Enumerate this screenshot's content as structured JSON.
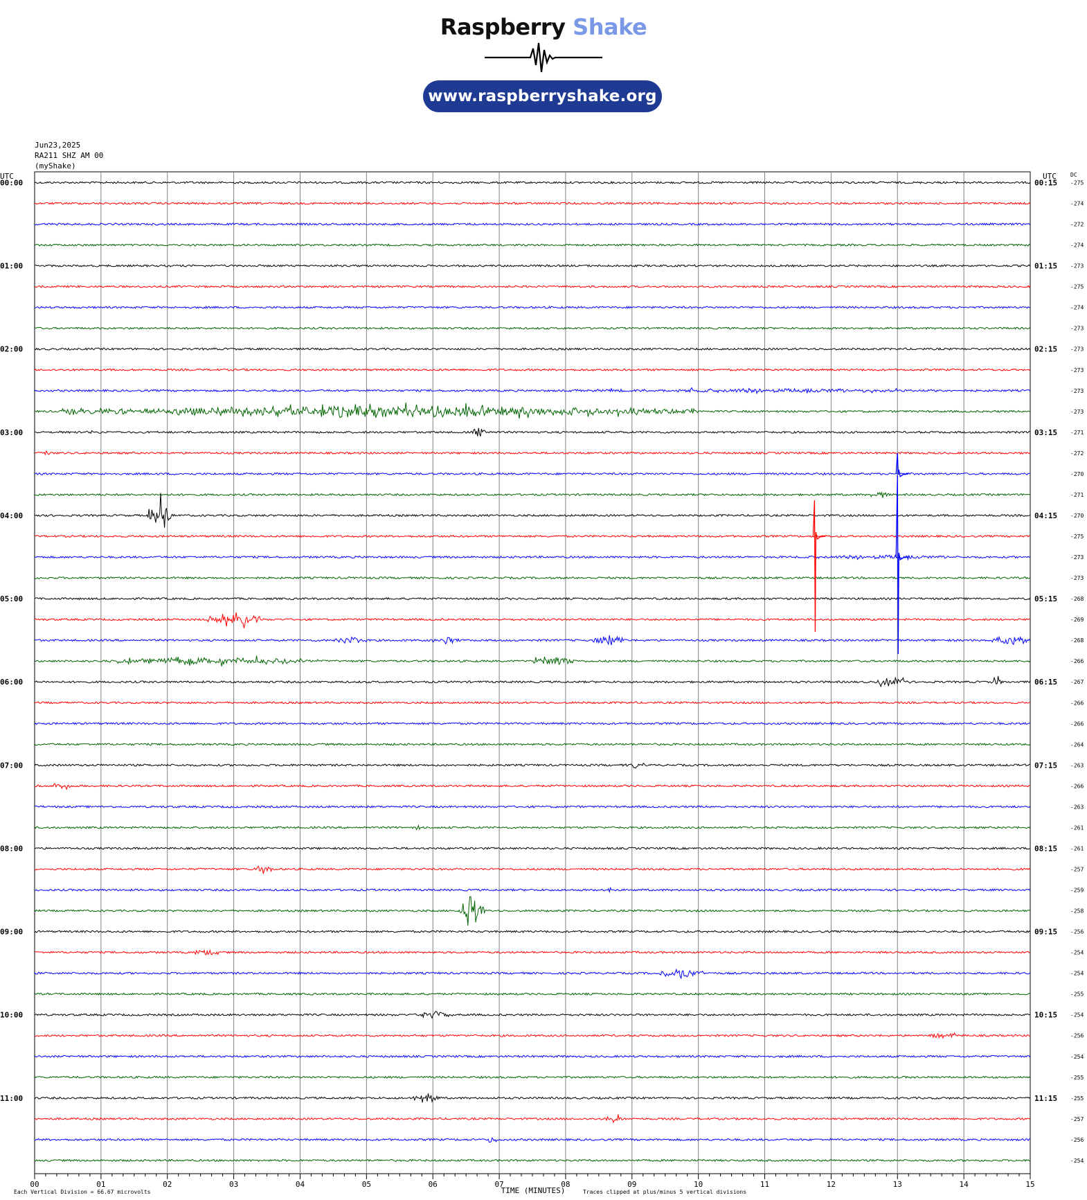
{
  "header": {
    "brand_part1": "Raspberry",
    "brand_part2": "Shake",
    "url": "www.raspberryshake.org"
  },
  "meta": {
    "date": "Jun23,2025",
    "station": "RA211 SHZ AM 00",
    "network": "(myShake)"
  },
  "colors": {
    "trace_cycle": [
      "#000000",
      "#ff0000",
      "#0000ff",
      "#006400"
    ],
    "grid": "#808080"
  },
  "chart_data": {
    "type": "line",
    "subtype": "helicorder",
    "xlabel": "TIME (MINUTES)",
    "xlim": [
      0,
      15
    ],
    "x_ticks": [
      "00",
      "01",
      "02",
      "03",
      "04",
      "05",
      "06",
      "07",
      "08",
      "09",
      "10",
      "11",
      "12",
      "13",
      "14",
      "15"
    ],
    "left_axis_title": "UTC",
    "right_axis_title": "UTC",
    "dc_title": "DC",
    "left_time_labels": [
      "00:00",
      "01:00",
      "02:00",
      "03:00",
      "04:00",
      "05:00",
      "06:00",
      "07:00",
      "08:00",
      "09:00",
      "10:00",
      "11:00"
    ],
    "right_time_labels": [
      "00:15",
      "01:15",
      "02:15",
      "03:15",
      "04:15",
      "05:15",
      "06:15",
      "07:15",
      "08:15",
      "09:15",
      "10:15",
      "11:15"
    ],
    "dc_offsets": [
      -275,
      -274,
      -272,
      -274,
      -273,
      -275,
      -274,
      -273,
      -273,
      -273,
      -273,
      -273,
      -271,
      -272,
      -270,
      -271,
      -270,
      -275,
      -273,
      -273,
      -268,
      -269,
      -268,
      -266,
      -267,
      -266,
      -266,
      -264,
      -263,
      -266,
      -263,
      -261,
      -261,
      -257,
      -259,
      -258,
      -256,
      -254,
      -254,
      -255,
      -254,
      -256,
      -254,
      -255,
      -255,
      -257,
      -256,
      -254
    ],
    "rows_per_hour": 4,
    "minutes_per_row": 15,
    "footer_left": "Each Vertical Division =   66.67 microvolts",
    "footer_right": "Traces clipped at plus/minus 5 vertical divisions",
    "events": [
      {
        "row": 10,
        "start": 8.0,
        "end": 13.8,
        "amp": 4
      },
      {
        "row": 11,
        "start": 0.4,
        "end": 10.0,
        "amp": 10
      },
      {
        "row": 12,
        "start": 0.3,
        "end": 1.5,
        "amp": 3
      },
      {
        "row": 12,
        "start": 6.6,
        "end": 6.8,
        "amp": 10
      },
      {
        "row": 13,
        "start": 0.15,
        "end": 0.25,
        "amp": 7
      },
      {
        "row": 15,
        "start": 12.6,
        "end": 12.9,
        "amp": 6
      },
      {
        "row": 16,
        "start": 1.7,
        "end": 2.1,
        "amp": 24
      },
      {
        "row": 18,
        "start": 11.5,
        "end": 13.9,
        "amp": 4
      },
      {
        "row": 21,
        "start": 2.6,
        "end": 3.4,
        "amp": 13
      },
      {
        "row": 22,
        "start": 4.5,
        "end": 5.0,
        "amp": 7
      },
      {
        "row": 22,
        "start": 6.0,
        "end": 6.4,
        "amp": 7
      },
      {
        "row": 22,
        "start": 8.4,
        "end": 8.9,
        "amp": 9
      },
      {
        "row": 22,
        "start": 14.4,
        "end": 15.0,
        "amp": 9
      },
      {
        "row": 23,
        "start": 1.2,
        "end": 4.3,
        "amp": 7
      },
      {
        "row": 23,
        "start": 7.5,
        "end": 8.2,
        "amp": 9
      },
      {
        "row": 24,
        "start": 12.7,
        "end": 13.2,
        "amp": 8
      },
      {
        "row": 24,
        "start": 14.4,
        "end": 14.6,
        "amp": 7
      },
      {
        "row": 28,
        "start": 8.9,
        "end": 9.2,
        "amp": 6
      },
      {
        "row": 29,
        "start": 0.2,
        "end": 0.6,
        "amp": 6
      },
      {
        "row": 31,
        "start": 5.7,
        "end": 5.9,
        "amp": 6
      },
      {
        "row": 33,
        "start": 3.3,
        "end": 3.6,
        "amp": 10
      },
      {
        "row": 34,
        "start": 8.6,
        "end": 8.7,
        "amp": 6
      },
      {
        "row": 35,
        "start": 6.4,
        "end": 6.8,
        "amp": 24
      },
      {
        "row": 37,
        "start": 2.4,
        "end": 2.8,
        "amp": 6
      },
      {
        "row": 38,
        "start": 9.4,
        "end": 10.1,
        "amp": 9
      },
      {
        "row": 40,
        "start": 5.8,
        "end": 6.3,
        "amp": 7
      },
      {
        "row": 41,
        "start": 13.4,
        "end": 13.9,
        "amp": 5
      },
      {
        "row": 44,
        "start": 5.7,
        "end": 6.1,
        "amp": 10
      },
      {
        "row": 45,
        "start": 8.6,
        "end": 8.9,
        "amp": 8
      },
      {
        "row": 46,
        "start": 6.8,
        "end": 7.0,
        "amp": 7
      }
    ],
    "spikes": [
      {
        "row": 17,
        "at": 11.75,
        "up": 52,
        "down": 138,
        "decay_to_row": 17
      },
      {
        "row": 14,
        "at": 13.0,
        "up": 30,
        "down": 0
      },
      {
        "row": 18,
        "at": 13.0,
        "up": 118,
        "down": 140
      }
    ]
  }
}
